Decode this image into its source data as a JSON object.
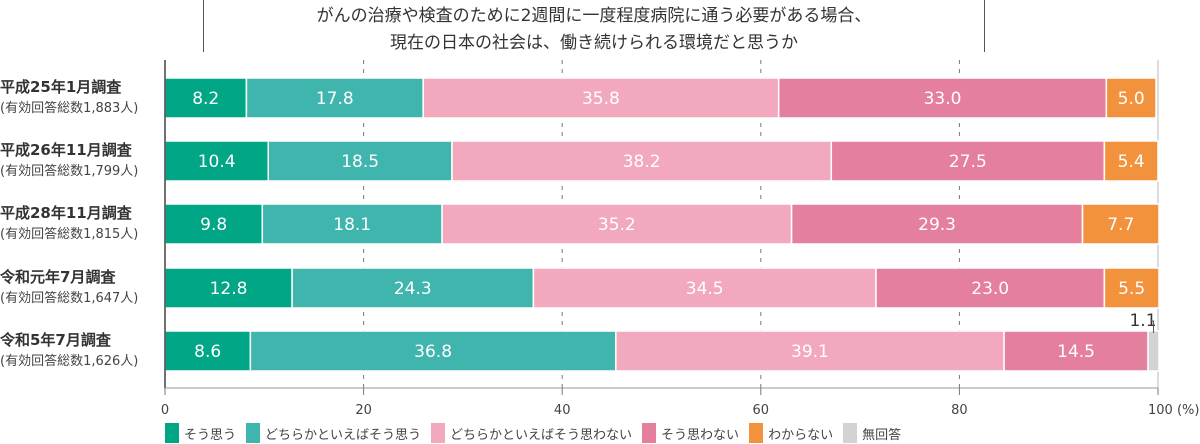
{
  "chart_data": {
    "type": "bar",
    "orientation": "horizontal-stacked",
    "title": "がんの治療や検査のために2週間に一度程度病院に通う必要がある場合、\n現在の日本の社会は、働き続けられる環境だと思うか",
    "title_lines": [
      "がんの治療や検査のために2週間に一度程度病院に通う必要がある場合、",
      "現在の日本の社会は、働き続けられる環境だと思うか"
    ],
    "categories": [
      {
        "label": "平成25年1月調査",
        "sub": "(有効回答総数1,883人)"
      },
      {
        "label": "平成26年11月調査",
        "sub": "(有効回答総数1,799人)"
      },
      {
        "label": "平成28年11月調査",
        "sub": "(有効回答総数1,815人)"
      },
      {
        "label": "令和元年7月調査",
        "sub": "(有効回答総数1,647人)"
      },
      {
        "label": "令和5年7月調査",
        "sub": "(有効回答総数1,626人)"
      }
    ],
    "series": [
      {
        "name": "そう思う",
        "color": "#00a685",
        "values": [
          8.2,
          10.4,
          9.8,
          12.8,
          8.6
        ]
      },
      {
        "name": "どちらかといえばそう思う",
        "color": "#40b5ae",
        "values": [
          17.8,
          18.5,
          18.1,
          24.3,
          36.8
        ]
      },
      {
        "name": "どちらかといえばそう思わない",
        "color": "#f2a9be",
        "values": [
          35.8,
          38.2,
          35.2,
          34.5,
          39.1
        ]
      },
      {
        "name": "そう思わない",
        "color": "#e57f9e",
        "values": [
          33.0,
          27.5,
          29.3,
          23.0,
          14.5
        ]
      },
      {
        "name": "わからない",
        "color": "#f3923c",
        "values": [
          5.0,
          5.4,
          7.7,
          5.5,
          null
        ]
      },
      {
        "name": "無回答",
        "color": "#d3d3d3",
        "values": [
          null,
          null,
          null,
          null,
          1.1
        ]
      }
    ],
    "xlim": [
      0,
      100
    ],
    "xticks": [
      "0",
      "20",
      "40",
      "60",
      "80",
      "100 (%)"
    ],
    "grid": "dashed vertical",
    "legend": "bottom"
  }
}
